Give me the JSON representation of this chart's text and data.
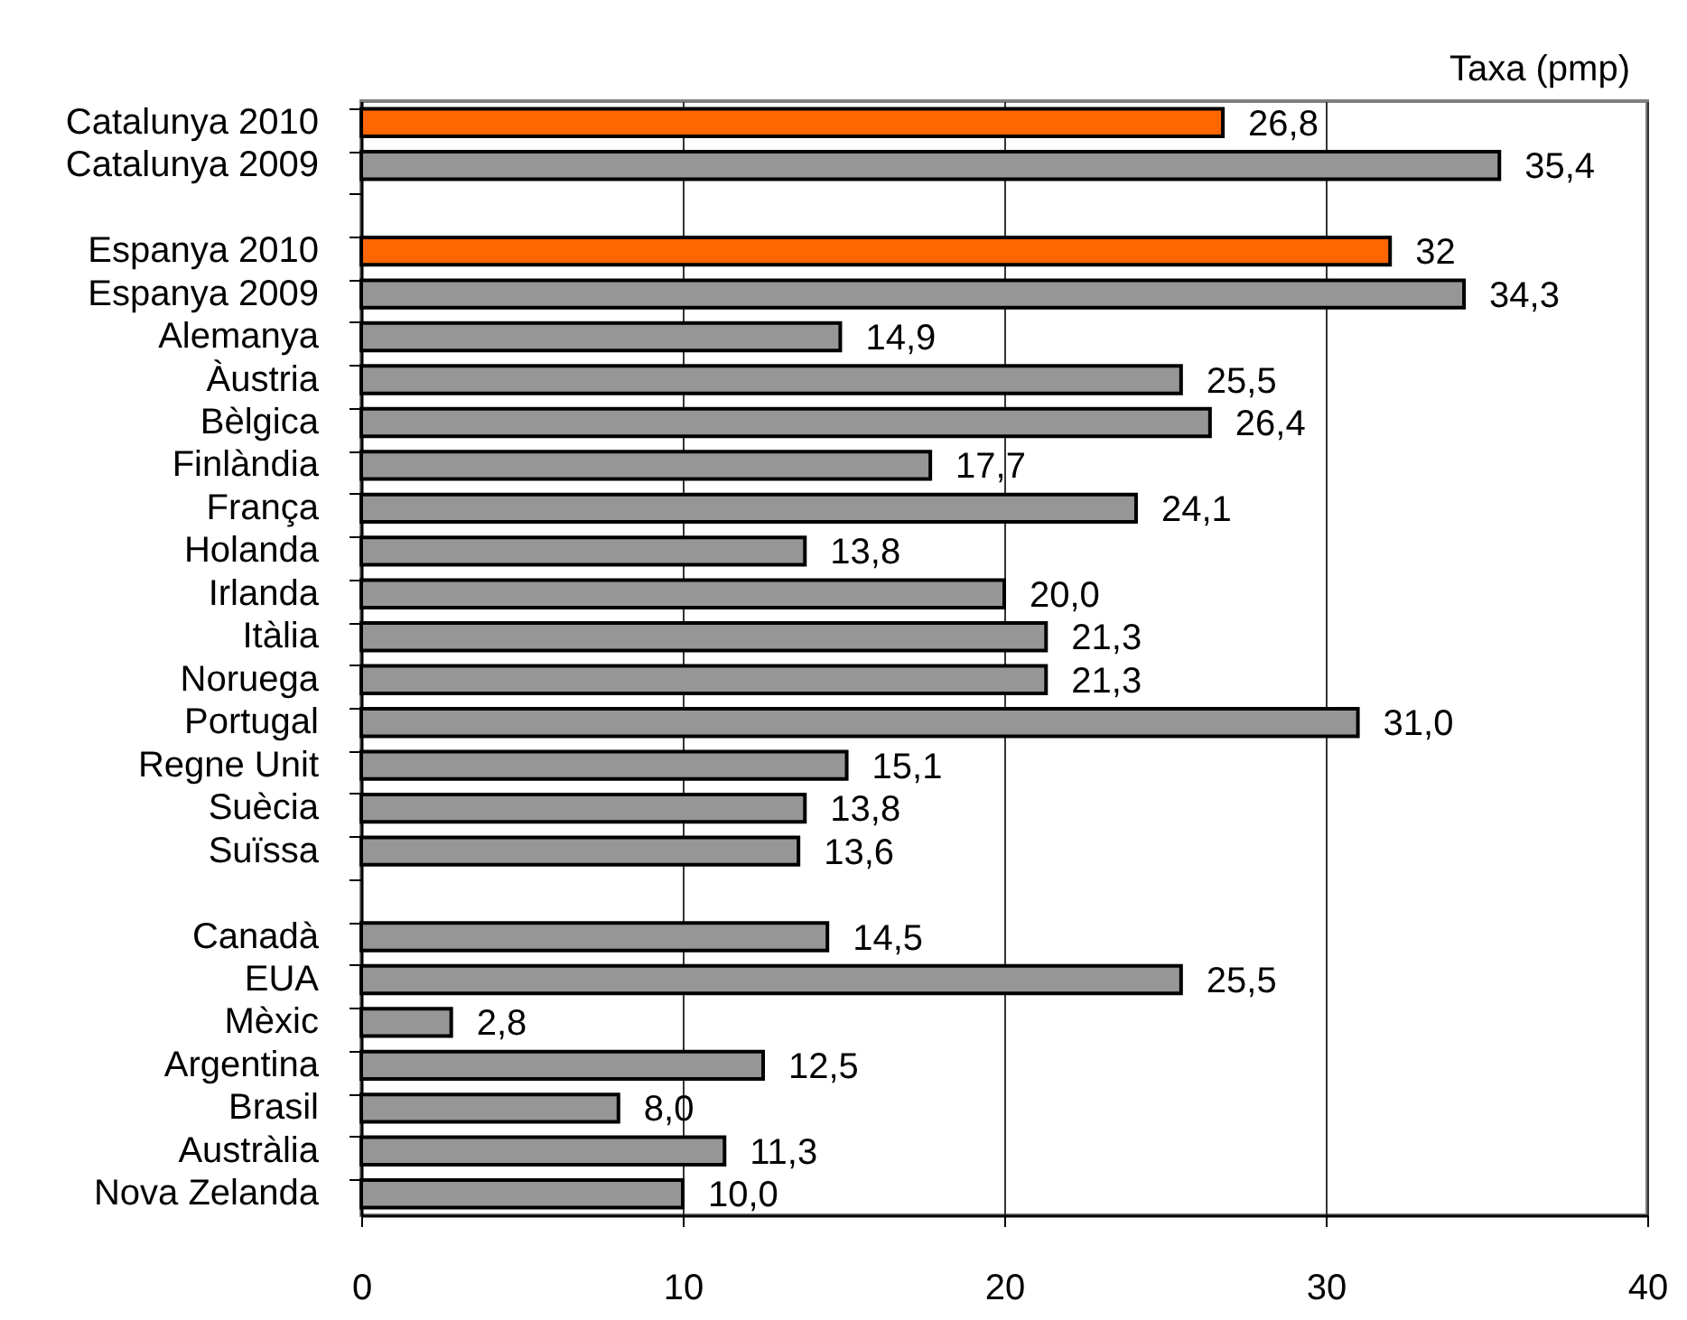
{
  "chart_data": {
    "type": "bar",
    "orientation": "horizontal",
    "xlabel": "Taxa (pmp)",
    "categories": [
      "Catalunya 2010",
      "Catalunya 2009",
      null,
      "Espanya 2010",
      "Espanya 2009",
      "Alemanya",
      "Àustria",
      "Bèlgica",
      "Finlàndia",
      "França",
      "Holanda",
      "Irlanda",
      "Itàlia",
      "Noruega",
      "Portugal",
      "Regne Unit",
      "Suècia",
      "Suïssa",
      null,
      "Canadà",
      "EUA",
      "Mèxic",
      "Argentina",
      "Brasil",
      "Austràlia",
      "Nova Zelanda"
    ],
    "values": [
      26.8,
      35.4,
      null,
      32,
      34.3,
      14.9,
      25.5,
      26.4,
      17.7,
      24.1,
      13.8,
      20.0,
      21.3,
      21.3,
      31.0,
      15.1,
      13.8,
      13.6,
      null,
      14.5,
      25.5,
      2.8,
      12.5,
      8.0,
      11.3,
      10.0
    ],
    "value_labels": [
      "26,8",
      "35,4",
      null,
      "32",
      "34,3",
      "14,9",
      "25,5",
      "26,4",
      "17,7",
      "24,1",
      "13,8",
      "20,0",
      "21,3",
      "21,3",
      "31,0",
      "15,1",
      "13,8",
      "13,6",
      null,
      "14,5",
      "25,5",
      "2,8",
      "12,5",
      "8,0",
      "11,3",
      "10,0"
    ],
    "colors": [
      "#ff6600",
      "#969696",
      null,
      "#ff6600",
      "#969696",
      "#969696",
      "#969696",
      "#969696",
      "#969696",
      "#969696",
      "#969696",
      "#969696",
      "#969696",
      "#969696",
      "#969696",
      "#969696",
      "#969696",
      "#969696",
      null,
      "#969696",
      "#969696",
      "#969696",
      "#969696",
      "#969696",
      "#969696",
      "#969696"
    ],
    "xlim": [
      0,
      40
    ],
    "xticks": [
      0,
      10,
      20,
      30,
      40
    ],
    "grid": "x"
  }
}
